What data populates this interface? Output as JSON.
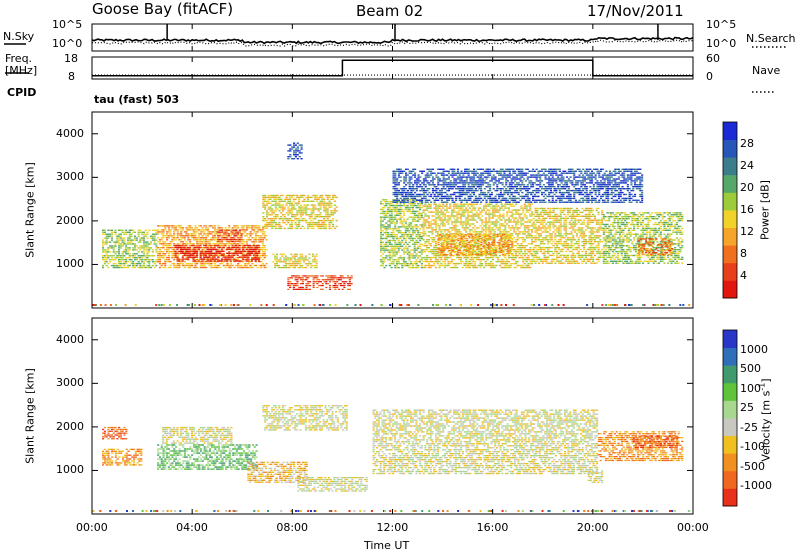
{
  "header": {
    "site": "Goose Bay (fitACF)",
    "beam": "Beam 02",
    "date": "17/Nov/2011"
  },
  "labels": {
    "nsky": "N.Sky",
    "nsearch": "N.Search",
    "freq_line1": "Freq.",
    "freq_line2": "[MHz]",
    "cpid": "CPID",
    "nave": "Nave",
    "cpid_value": "tau (fast) 503",
    "noise_tick_hi": "10^5",
    "noise_tick_lo": "10^0",
    "freq_tick_hi": "18",
    "freq_tick_lo": "8",
    "nave_tick_hi": "60",
    "nave_tick_lo": "0"
  },
  "chart_data": [
    {
      "type": "line",
      "name": "noise-panel",
      "x_range": [
        0,
        24
      ],
      "series": [
        {
          "name": "N.Sky",
          "style": "solid",
          "level": 0.4
        },
        {
          "name": "N.Search",
          "style": "dotted",
          "level": 0.3
        }
      ]
    },
    {
      "type": "line",
      "name": "freq-nave-panel",
      "x_range": [
        0,
        24
      ],
      "freq_segments": [
        {
          "t0": 0,
          "t1": 10,
          "value": 0.15
        },
        {
          "t0": 10,
          "t1": 20,
          "value": 0.85
        },
        {
          "t0": 20,
          "t1": 24,
          "value": 0.15
        }
      ],
      "nave_level": 0.18
    },
    {
      "type": "heatmap",
      "name": "power",
      "ylabel": "Slant Range [km]",
      "ylim": [
        0,
        4500
      ],
      "yticks": [
        1000,
        2000,
        3000,
        4000
      ],
      "colorbar_label": "Power [dB]",
      "colorbar_ticks": [
        "4",
        "8",
        "12",
        "16",
        "20",
        "24",
        "28"
      ],
      "colorbar_colors": [
        "#1a2bd6",
        "#2656b8",
        "#3c7d8c",
        "#55a86a",
        "#9ccc3c",
        "#f0d22a",
        "#f4a52a",
        "#f07020",
        "#e8401a",
        "#e0160f"
      ],
      "blobs": [
        {
          "t0": 0.4,
          "t1": 2.6,
          "r0": 900,
          "r1": 1800,
          "level": 4
        },
        {
          "t0": 2.6,
          "t1": 7.0,
          "r0": 900,
          "r1": 1900,
          "level": 6
        },
        {
          "t0": 3.3,
          "t1": 6.7,
          "r0": 1050,
          "r1": 1450,
          "level": 9
        },
        {
          "t0": 5.0,
          "t1": 6.0,
          "r0": 1500,
          "r1": 1800,
          "level": 8
        },
        {
          "t0": 6.8,
          "t1": 9.8,
          "r0": 1800,
          "r1": 2600,
          "level": 5
        },
        {
          "t0": 7.2,
          "t1": 9.0,
          "r0": 900,
          "r1": 1250,
          "level": 5
        },
        {
          "t0": 7.8,
          "t1": 10.4,
          "r0": 400,
          "r1": 750,
          "level": 8
        },
        {
          "t0": 7.8,
          "t1": 8.4,
          "r0": 3400,
          "r1": 3800,
          "level": 1
        },
        {
          "t0": 11.5,
          "t1": 13.2,
          "r0": 900,
          "r1": 2500,
          "level": 4
        },
        {
          "t0": 13.2,
          "t1": 17.6,
          "r0": 900,
          "r1": 2400,
          "level": 5
        },
        {
          "t0": 13.8,
          "t1": 16.8,
          "r0": 1200,
          "r1": 1700,
          "level": 6
        },
        {
          "t0": 17.6,
          "t1": 20.4,
          "r0": 1000,
          "r1": 2300,
          "level": 5
        },
        {
          "t0": 20.4,
          "t1": 23.6,
          "r0": 1000,
          "r1": 2200,
          "level": 4
        },
        {
          "t0": 21.8,
          "t1": 23.2,
          "r0": 1200,
          "r1": 1600,
          "level": 7
        },
        {
          "t0": 12.0,
          "t1": 22.0,
          "r0": 2400,
          "r1": 3200,
          "level": 1
        }
      ]
    },
    {
      "type": "heatmap",
      "name": "velocity",
      "ylabel": "Slant Range [km]",
      "ylim": [
        0,
        4500
      ],
      "yticks": [
        1000,
        2000,
        3000,
        4000
      ],
      "xlabel": "Time UT",
      "xticks": [
        "00:00",
        "04:00",
        "08:00",
        "12:00",
        "16:00",
        "20:00",
        "00:00"
      ],
      "colorbar_label": "Velocity [m s^-1]",
      "colorbar_ticks": [
        "1000",
        "500",
        "100",
        "25",
        "-25",
        "-100",
        "-500",
        "-1000"
      ],
      "colorbar_colors": [
        "#2a36c8",
        "#2f6eb8",
        "#3f9a6e",
        "#5ec43c",
        "#a8d890",
        "#c8c8c0",
        "#f0c020",
        "#f09020",
        "#f06820",
        "#e8301a"
      ],
      "blobs": [
        {
          "t0": 0.4,
          "t1": 2.0,
          "r0": 1100,
          "r1": 1500,
          "level": 7
        },
        {
          "t0": 0.4,
          "t1": 1.4,
          "r0": 1700,
          "r1": 2000,
          "level": 8
        },
        {
          "t0": 2.6,
          "t1": 6.6,
          "r0": 1000,
          "r1": 1600,
          "level": 3
        },
        {
          "t0": 2.8,
          "t1": 5.6,
          "r0": 1600,
          "r1": 2000,
          "level": 5
        },
        {
          "t0": 6.2,
          "t1": 8.6,
          "r0": 700,
          "r1": 1200,
          "level": 6
        },
        {
          "t0": 6.8,
          "t1": 10.2,
          "r0": 1900,
          "r1": 2500,
          "level": 5
        },
        {
          "t0": 8.2,
          "t1": 11.0,
          "r0": 500,
          "r1": 850,
          "level": 5
        },
        {
          "t0": 11.2,
          "t1": 20.2,
          "r0": 900,
          "r1": 2400,
          "level": 5
        },
        {
          "t0": 20.2,
          "t1": 23.6,
          "r0": 1200,
          "r1": 1900,
          "level": 7
        },
        {
          "t0": 21.6,
          "t1": 23.4,
          "r0": 1500,
          "r1": 1800,
          "level": 8
        },
        {
          "t0": 19.8,
          "t1": 20.4,
          "r0": 700,
          "r1": 1000,
          "level": 5
        }
      ]
    }
  ]
}
